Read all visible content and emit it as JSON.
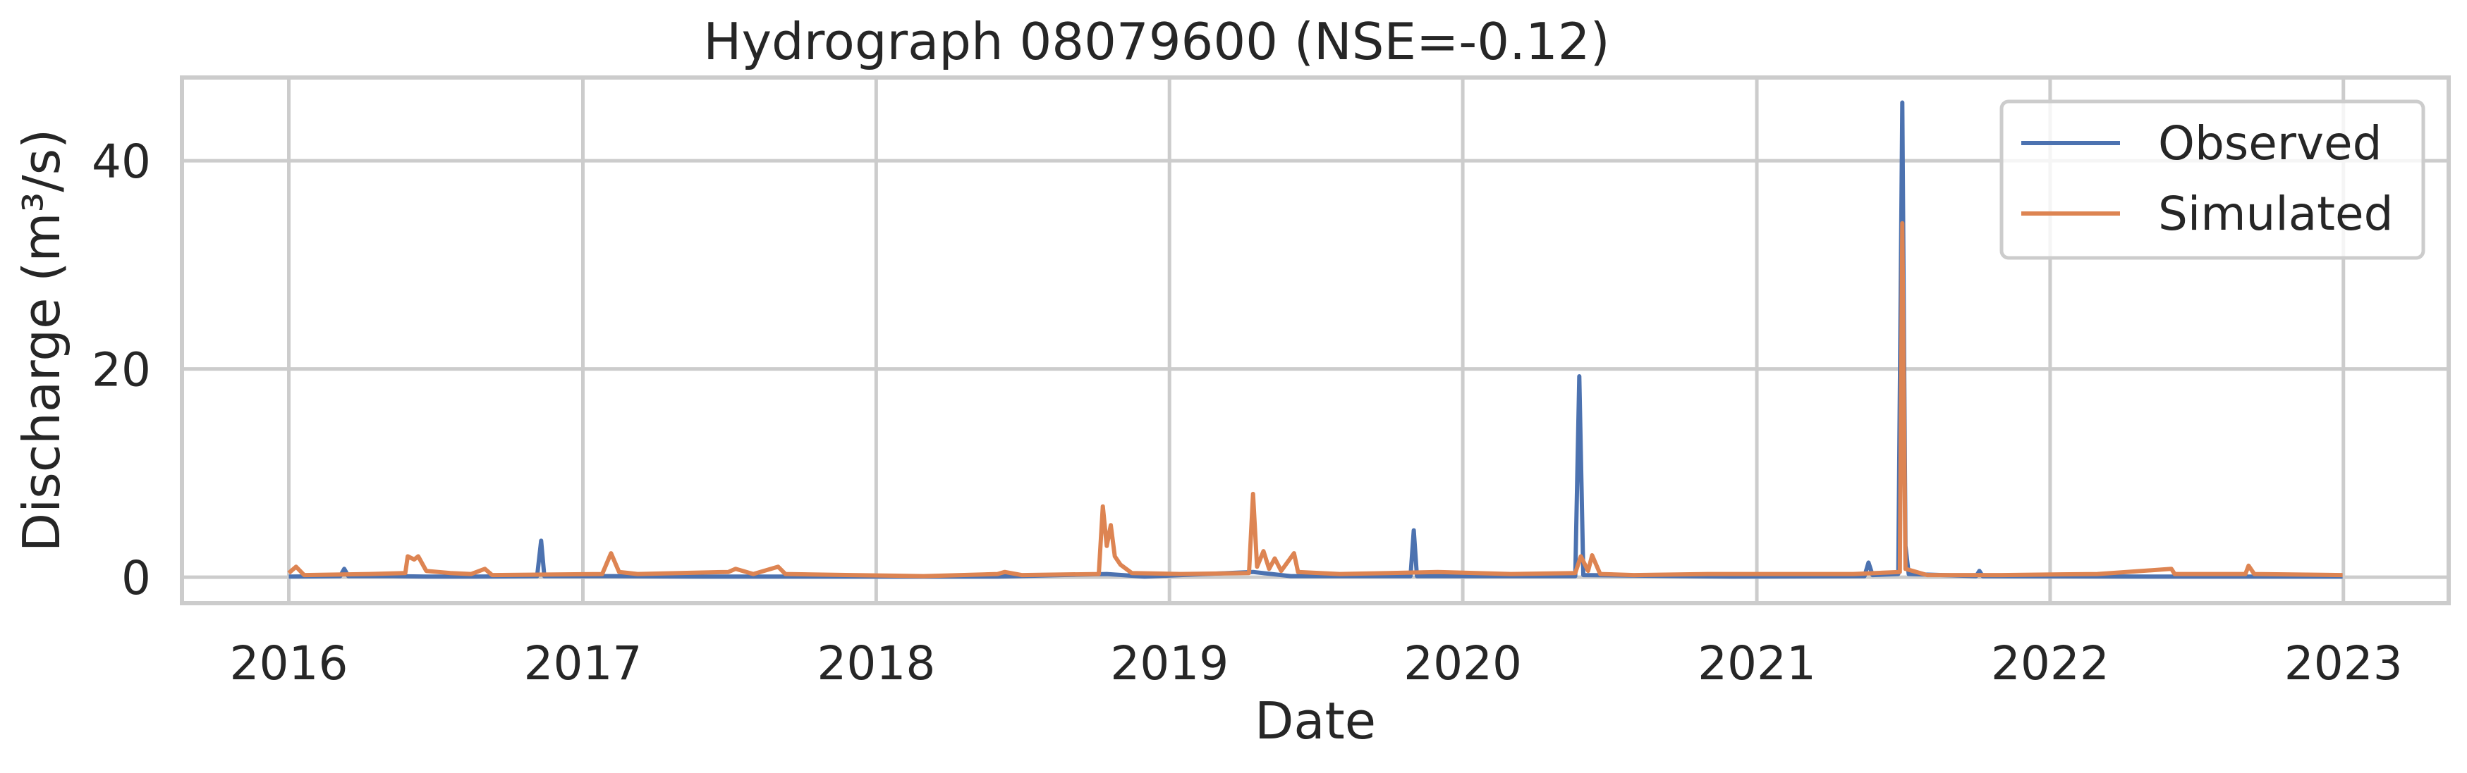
{
  "chart_data": {
    "type": "line",
    "title": "Hydrograph 08079600  (NSE=-0.12)",
    "xlabel": "Date",
    "ylabel": "Discharge (m³/s)",
    "xlim": [
      "2015-08-21",
      "2023-05-12"
    ],
    "ylim": [
      -2.5,
      48
    ],
    "x_ticks": [
      "2016",
      "2017",
      "2018",
      "2019",
      "2020",
      "2021",
      "2022",
      "2023"
    ],
    "y_ticks": [
      0,
      20,
      40
    ],
    "grid": true,
    "legend": {
      "placement": "top-right",
      "entries": [
        "Observed",
        "Simulated"
      ]
    },
    "series": [
      {
        "name": "Observed",
        "color": "#4c72b0",
        "points": [
          [
            "2016-01-01",
            0.05
          ],
          [
            "2016-03-05",
            0.1
          ],
          [
            "2016-03-10",
            0.8
          ],
          [
            "2016-03-15",
            0.1
          ],
          [
            "2016-05-10",
            0.1
          ],
          [
            "2016-06-20",
            0.05
          ],
          [
            "2016-08-20",
            0.05
          ],
          [
            "2016-11-05",
            0.1
          ],
          [
            "2016-11-10",
            3.5
          ],
          [
            "2016-11-14",
            0.1
          ],
          [
            "2017-02-01",
            0.1
          ],
          [
            "2017-06-01",
            0.05
          ],
          [
            "2017-12-01",
            0.05
          ],
          [
            "2018-06-01",
            0.05
          ],
          [
            "2018-10-15",
            0.3
          ],
          [
            "2018-12-01",
            0.05
          ],
          [
            "2019-04-15",
            0.5
          ],
          [
            "2019-06-01",
            0.1
          ],
          [
            "2019-10-28",
            0.1
          ],
          [
            "2019-11-01",
            4.5
          ],
          [
            "2019-11-05",
            0.1
          ],
          [
            "2020-05-20",
            0.1
          ],
          [
            "2020-05-25",
            19.3
          ],
          [
            "2020-05-30",
            0.2
          ],
          [
            "2020-12-01",
            0.05
          ],
          [
            "2021-05-15",
            0.1
          ],
          [
            "2021-05-20",
            1.4
          ],
          [
            "2021-05-25",
            0.2
          ],
          [
            "2021-06-26",
            0.3
          ],
          [
            "2021-07-01",
            45.6
          ],
          [
            "2021-07-05",
            3.0
          ],
          [
            "2021-07-09",
            0.3
          ],
          [
            "2021-10-01",
            0.1
          ],
          [
            "2021-10-05",
            0.6
          ],
          [
            "2021-10-09",
            0.1
          ],
          [
            "2022-06-01",
            0.05
          ],
          [
            "2022-12-31",
            0.05
          ]
        ]
      },
      {
        "name": "Simulated",
        "color": "#dd8452",
        "points": [
          [
            "2016-01-01",
            0.4
          ],
          [
            "2016-01-10",
            1.0
          ],
          [
            "2016-01-20",
            0.2
          ],
          [
            "2016-04-10",
            0.3
          ],
          [
            "2016-05-25",
            0.4
          ],
          [
            "2016-05-28",
            2.0
          ],
          [
            "2016-06-05",
            1.7
          ],
          [
            "2016-06-10",
            2.0
          ],
          [
            "2016-06-20",
            0.6
          ],
          [
            "2016-07-20",
            0.4
          ],
          [
            "2016-08-15",
            0.3
          ],
          [
            "2016-09-01",
            0.8
          ],
          [
            "2016-09-10",
            0.2
          ],
          [
            "2017-01-25",
            0.3
          ],
          [
            "2017-02-05",
            2.3
          ],
          [
            "2017-02-15",
            0.5
          ],
          [
            "2017-03-10",
            0.3
          ],
          [
            "2017-05-01",
            0.4
          ],
          [
            "2017-07-01",
            0.5
          ],
          [
            "2017-07-10",
            0.8
          ],
          [
            "2017-08-01",
            0.3
          ],
          [
            "2017-09-01",
            1.0
          ],
          [
            "2017-09-10",
            0.3
          ],
          [
            "2017-12-01",
            0.2
          ],
          [
            "2018-03-01",
            0.1
          ],
          [
            "2018-06-01",
            0.3
          ],
          [
            "2018-06-10",
            0.5
          ],
          [
            "2018-07-01",
            0.2
          ],
          [
            "2018-10-05",
            0.3
          ],
          [
            "2018-10-10",
            6.8
          ],
          [
            "2018-10-15",
            3.0
          ],
          [
            "2018-10-20",
            5.0
          ],
          [
            "2018-10-25",
            2.0
          ],
          [
            "2018-11-01",
            1.2
          ],
          [
            "2018-11-15",
            0.4
          ],
          [
            "2019-01-15",
            0.3
          ],
          [
            "2019-04-10",
            0.4
          ],
          [
            "2019-04-15",
            8.0
          ],
          [
            "2019-04-20",
            1.0
          ],
          [
            "2019-04-28",
            2.5
          ],
          [
            "2019-05-05",
            0.8
          ],
          [
            "2019-05-12",
            1.8
          ],
          [
            "2019-05-20",
            0.6
          ],
          [
            "2019-06-05",
            2.3
          ],
          [
            "2019-06-10",
            0.5
          ],
          [
            "2019-08-01",
            0.3
          ],
          [
            "2019-10-01",
            0.4
          ],
          [
            "2019-12-01",
            0.5
          ],
          [
            "2020-03-01",
            0.3
          ],
          [
            "2020-05-20",
            0.4
          ],
          [
            "2020-05-27",
            2.0
          ],
          [
            "2020-06-05",
            0.6
          ],
          [
            "2020-06-10",
            2.1
          ],
          [
            "2020-06-20",
            0.3
          ],
          [
            "2020-08-01",
            0.2
          ],
          [
            "2020-11-01",
            0.3
          ],
          [
            "2021-03-01",
            0.3
          ],
          [
            "2021-05-01",
            0.3
          ],
          [
            "2021-06-28",
            0.5
          ],
          [
            "2021-07-01",
            34.0
          ],
          [
            "2021-07-05",
            0.8
          ],
          [
            "2021-08-01",
            0.2
          ],
          [
            "2021-11-01",
            0.2
          ],
          [
            "2022-03-01",
            0.3
          ],
          [
            "2022-06-01",
            0.8
          ],
          [
            "2022-06-05",
            0.3
          ],
          [
            "2022-09-01",
            0.3
          ],
          [
            "2022-09-05",
            1.1
          ],
          [
            "2022-09-12",
            0.3
          ],
          [
            "2022-12-31",
            0.2
          ]
        ]
      }
    ]
  }
}
